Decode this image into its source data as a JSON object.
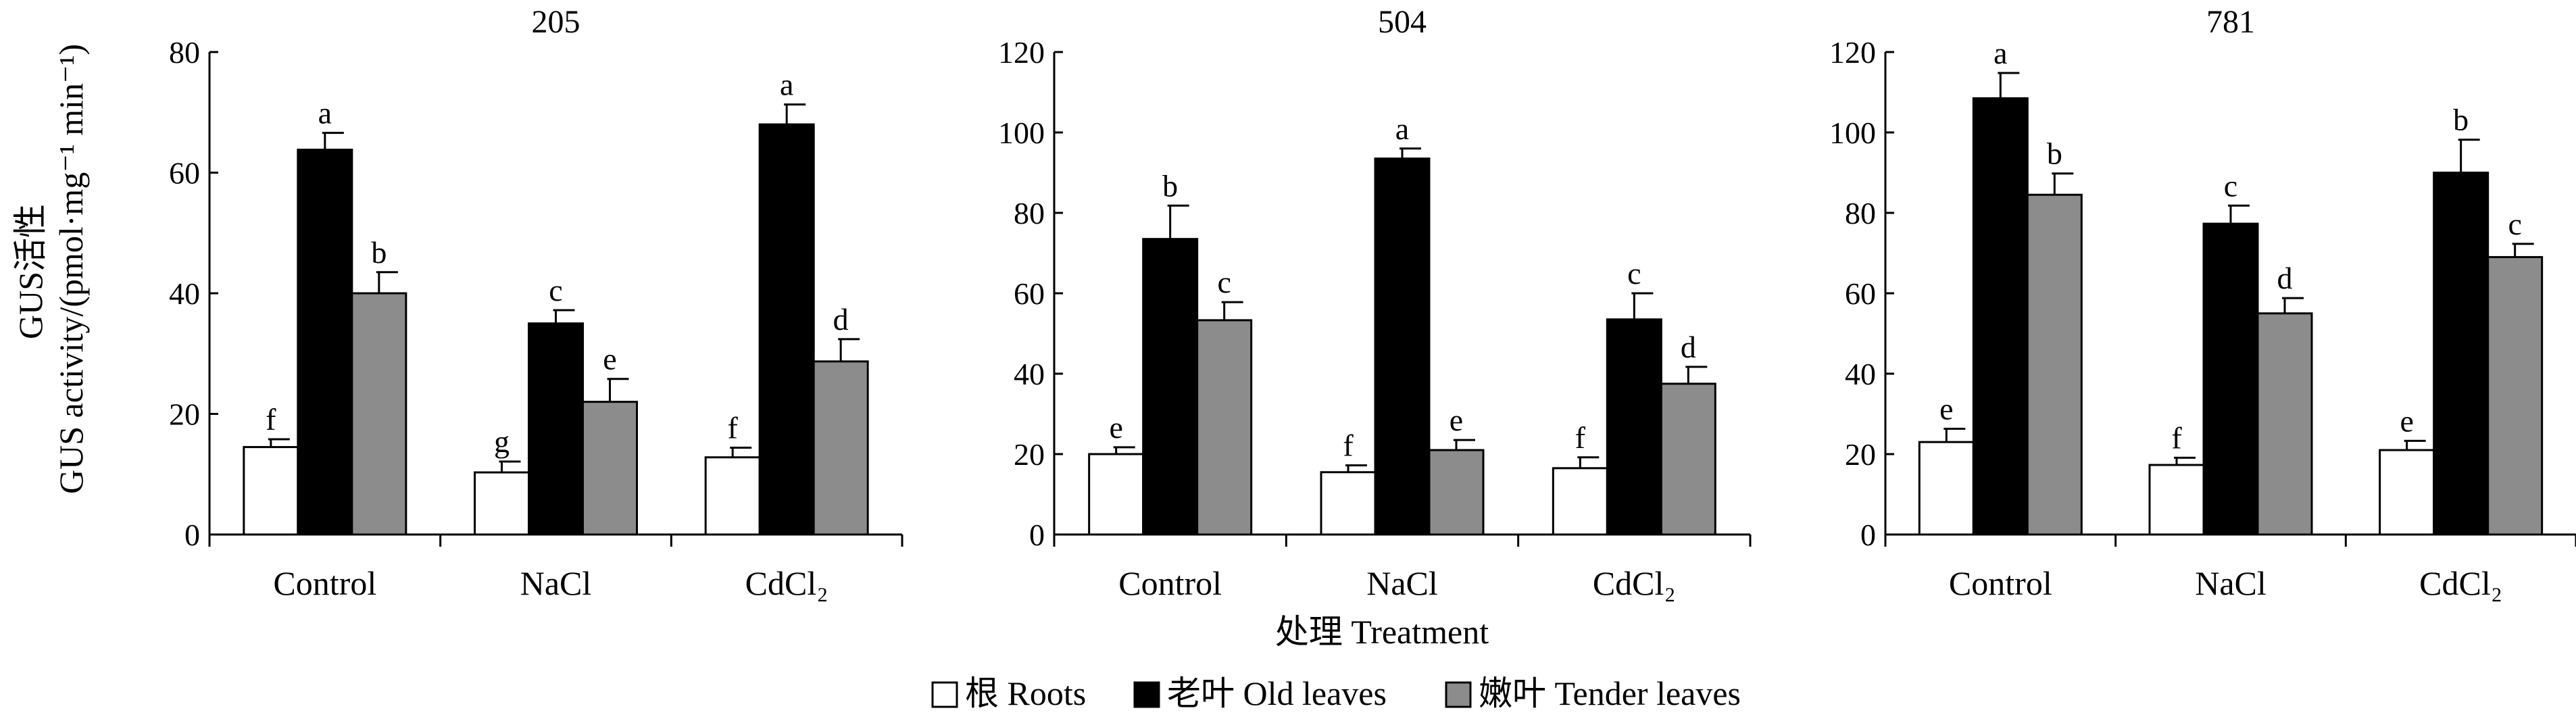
{
  "figure": {
    "y_axis_title_line1": "GUS活性",
    "y_axis_title_line2": "GUS activity/(pmol·mg⁻¹ min⁻¹)",
    "x_axis_title": "处理 Treatment"
  },
  "legend": [
    {
      "label": "根 Roots",
      "color": "#ffffff"
    },
    {
      "label": "老叶 Old leaves",
      "color": "#000000"
    },
    {
      "label": "嫩叶 Tender leaves",
      "color": "#8c8c8c"
    }
  ],
  "chart_data": [
    {
      "type": "bar",
      "title": "205",
      "categories": [
        "Control",
        "NaCl",
        "CdCl₂"
      ],
      "xlabel": "处理 Treatment",
      "ylabel": "GUS activity/(pmol·mg⁻¹ min⁻¹)",
      "ylim": [
        0,
        80
      ],
      "yticks": [
        0,
        20,
        40,
        60,
        80
      ],
      "series": [
        {
          "name": "根 Roots",
          "values": [
            14.5,
            10.3,
            12.8
          ],
          "errors": [
            1.3,
            1.8,
            1.6
          ],
          "letters": [
            "f",
            "g",
            "f"
          ]
        },
        {
          "name": "老叶 Old leaves",
          "values": [
            63.8,
            35,
            68
          ],
          "errors": [
            2.8,
            2.2,
            3.3
          ],
          "letters": [
            "a",
            "c",
            "a"
          ]
        },
        {
          "name": "嫩叶 Tender leaves",
          "values": [
            40,
            22,
            28.7
          ],
          "errors": [
            3.5,
            3.8,
            3.7
          ],
          "letters": [
            "b",
            "e",
            "d"
          ]
        }
      ]
    },
    {
      "type": "bar",
      "title": "504",
      "categories": [
        "Control",
        "NaCl",
        "CdCl₂"
      ],
      "xlabel": "处理 Treatment",
      "ylabel": "GUS activity/(pmol·mg⁻¹ min⁻¹)",
      "ylim": [
        0,
        120
      ],
      "yticks": [
        0,
        20,
        40,
        60,
        80,
        100,
        120
      ],
      "series": [
        {
          "name": "根 Roots",
          "values": [
            20,
            15.5,
            16.5
          ],
          "errors": [
            1.7,
            1.7,
            2.7
          ],
          "letters": [
            "e",
            "f",
            "f"
          ]
        },
        {
          "name": "老叶 Old leaves",
          "values": [
            73.5,
            93.5,
            53.5
          ],
          "errors": [
            8.3,
            2.5,
            6.5
          ],
          "letters": [
            "b",
            "a",
            "c"
          ]
        },
        {
          "name": "嫩叶 Tender leaves",
          "values": [
            53.3,
            21,
            37.5
          ],
          "errors": [
            4.5,
            2.5,
            4.2
          ],
          "letters": [
            "c",
            "e",
            "d"
          ]
        }
      ]
    },
    {
      "type": "bar",
      "title": "781",
      "categories": [
        "Control",
        "NaCl",
        "CdCl₂"
      ],
      "xlabel": "处理 Treatment",
      "ylabel": "GUS activity/(pmol·mg⁻¹ min⁻¹)",
      "ylim": [
        0,
        120
      ],
      "yticks": [
        0,
        20,
        40,
        60,
        80,
        100,
        120
      ],
      "series": [
        {
          "name": "根 Roots",
          "values": [
            23,
            17.3,
            21
          ],
          "errors": [
            3.3,
            1.8,
            2.3
          ],
          "letters": [
            "e",
            "f",
            "e"
          ]
        },
        {
          "name": "老叶 Old leaves",
          "values": [
            108.5,
            77.3,
            90
          ],
          "errors": [
            6.3,
            4.5,
            8.2
          ],
          "letters": [
            "a",
            "c",
            "b"
          ]
        },
        {
          "name": "嫩叶 Tender leaves",
          "values": [
            84.5,
            55,
            69
          ],
          "errors": [
            5.3,
            3.8,
            3.3
          ],
          "letters": [
            "b",
            "d",
            "c"
          ]
        }
      ]
    }
  ]
}
